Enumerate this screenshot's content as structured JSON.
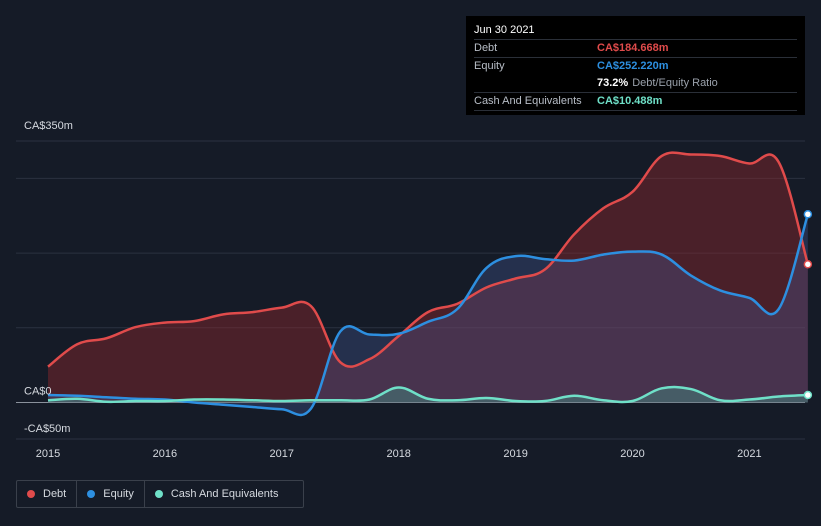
{
  "tooltip": {
    "date": "Jun 30 2021",
    "debt_label": "Debt",
    "debt_value": "CA$184.668m",
    "equity_label": "Equity",
    "equity_value": "CA$252.220m",
    "ratio_value": "73.2%",
    "ratio_label": "Debt/Equity Ratio",
    "cash_label": "Cash And Equivalents",
    "cash_value": "CA$10.488m"
  },
  "legend": {
    "debt": "Debt",
    "equity": "Equity",
    "cash": "Cash And Equivalents"
  },
  "colors": {
    "debt": "#e04b4b",
    "equity": "#2d8fe0",
    "cash": "#6fe0c8",
    "background": "#151b27"
  },
  "chart_data": {
    "type": "area",
    "title": "",
    "xlabel": "",
    "ylabel": "",
    "y_axis_labels": [
      "CA$350m",
      "CA$0",
      "-CA$50m"
    ],
    "x_tick_labels": [
      "2015",
      "2016",
      "2017",
      "2018",
      "2019",
      "2020",
      "2021"
    ],
    "x_ticks": [
      2015,
      2016,
      2017,
      2018,
      2019,
      2020,
      2021
    ],
    "xlim": [
      2015.0,
      2021.5
    ],
    "ylim": [
      -50,
      350
    ],
    "series": [
      {
        "name": "Debt",
        "x": [
          2015.0,
          2015.25,
          2015.5,
          2015.75,
          2016.0,
          2016.25,
          2016.5,
          2016.75,
          2017.0,
          2017.25,
          2017.5,
          2017.75,
          2018.0,
          2018.25,
          2018.5,
          2018.75,
          2019.0,
          2019.25,
          2019.5,
          2019.75,
          2020.0,
          2020.25,
          2020.5,
          2020.75,
          2021.0,
          2021.25,
          2021.5
        ],
        "values": [
          48,
          78,
          86,
          101,
          107,
          109,
          118,
          121,
          127,
          129,
          54,
          58,
          89,
          121,
          132,
          154,
          166,
          178,
          225,
          260,
          282,
          330,
          332,
          330,
          320,
          322,
          185
        ]
      },
      {
        "name": "Equity",
        "x": [
          2015.0,
          2015.25,
          2015.5,
          2015.75,
          2016.0,
          2016.25,
          2016.5,
          2016.75,
          2017.0,
          2017.25,
          2017.5,
          2017.75,
          2018.0,
          2018.25,
          2018.5,
          2018.75,
          2019.0,
          2019.25,
          2019.5,
          2019.75,
          2020.0,
          2020.25,
          2020.5,
          2020.75,
          2021.0,
          2021.25,
          2021.5
        ],
        "values": [
          10,
          9,
          7,
          5,
          4,
          0,
          -3,
          -6,
          -9,
          -8,
          95,
          91,
          92,
          108,
          125,
          180,
          196,
          192,
          190,
          198,
          202,
          198,
          170,
          150,
          140,
          125,
          252
        ]
      },
      {
        "name": "Cash And Equivalents",
        "x": [
          2015.0,
          2015.25,
          2015.5,
          2015.75,
          2016.0,
          2016.25,
          2016.5,
          2016.75,
          2017.0,
          2017.25,
          2017.5,
          2017.75,
          2018.0,
          2018.25,
          2018.5,
          2018.75,
          2019.0,
          2019.25,
          2019.5,
          2019.75,
          2020.0,
          2020.25,
          2020.5,
          2020.75,
          2021.0,
          2021.25,
          2021.5
        ],
        "values": [
          3,
          5,
          1,
          2,
          2,
          4,
          4,
          3,
          2,
          3,
          3,
          4,
          20,
          5,
          3,
          6,
          2,
          2,
          9,
          3,
          2,
          19,
          18,
          3,
          4,
          8,
          10
        ]
      }
    ]
  }
}
